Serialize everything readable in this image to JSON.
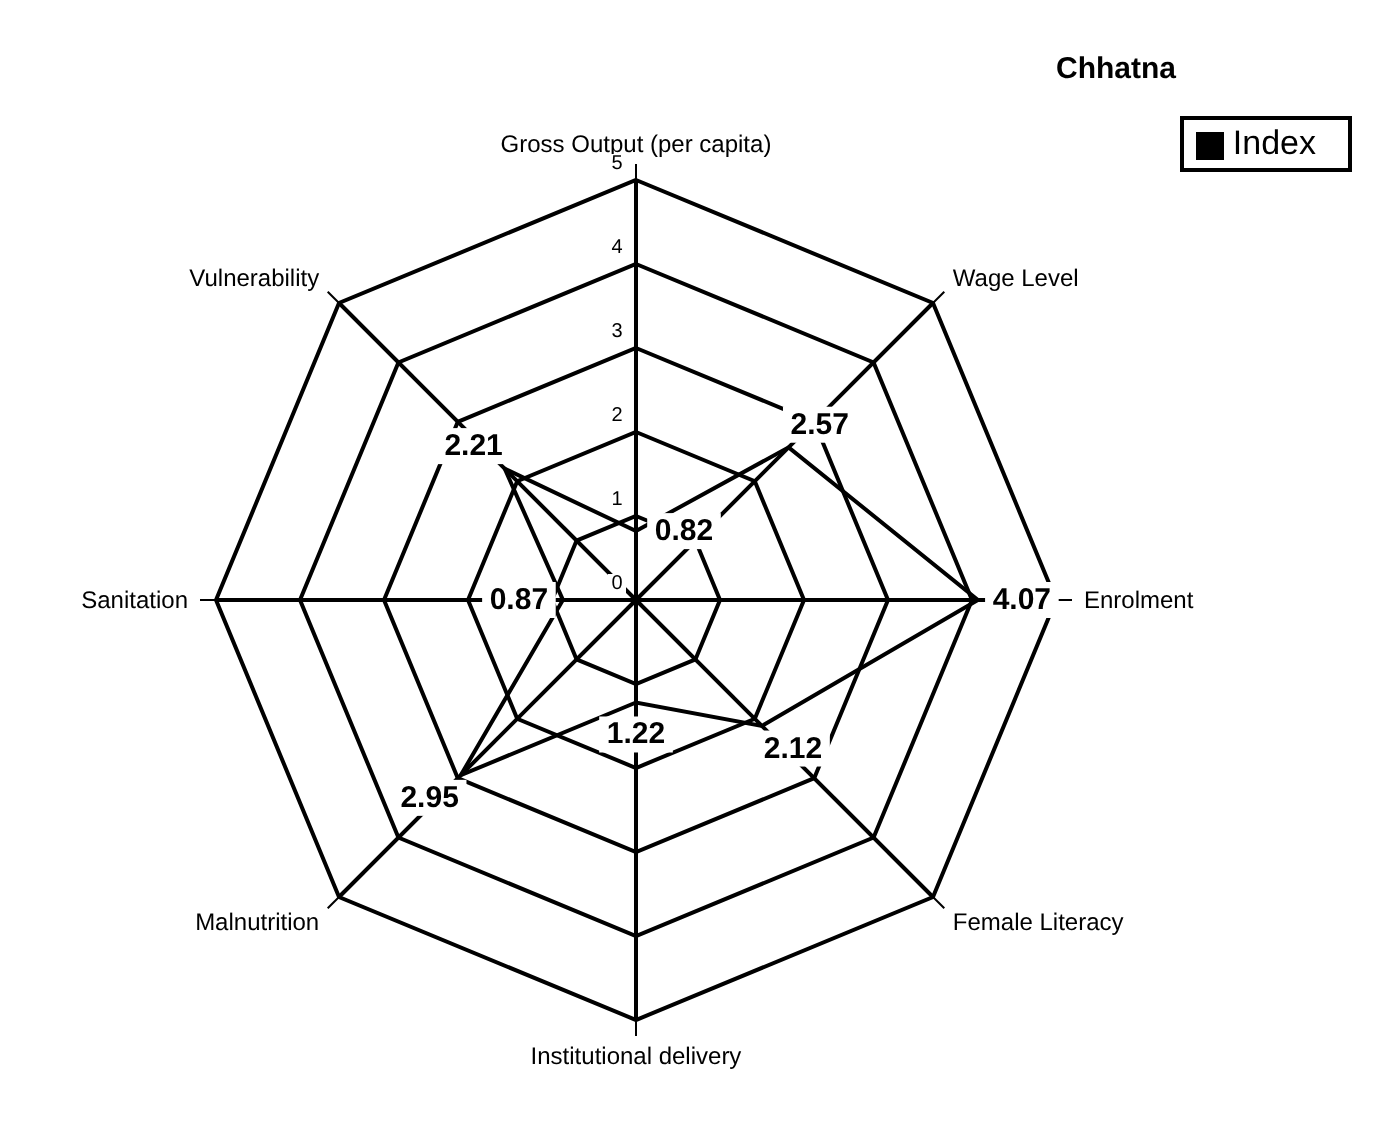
{
  "chart_data": {
    "type": "radar",
    "title": "Chhatna",
    "categories": [
      "Gross Output (per capita)",
      "Wage Level",
      "Enrolment",
      "Female Literacy",
      "Institutional delivery",
      "Malnutrition",
      "Sanitation",
      "Vulnerability"
    ],
    "series": [
      {
        "name": "Index",
        "color": "#000000",
        "values": [
          0.82,
          2.57,
          4.07,
          2.12,
          1.22,
          2.95,
          0.87,
          2.21
        ]
      }
    ],
    "ylim": [
      0,
      5
    ],
    "yticks": [
      0,
      1,
      2,
      3,
      4,
      5
    ],
    "data_labels": true,
    "legend": "top right",
    "grid": true,
    "marker": "none"
  }
}
